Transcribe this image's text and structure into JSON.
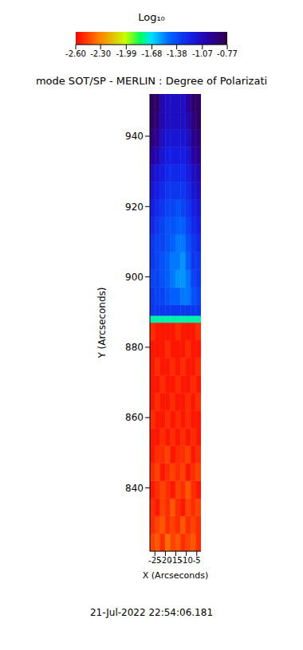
{
  "chart_data": {
    "type": "heatmap",
    "title": "mode SOT/SP - MERLIN : Degree of Polarizati",
    "x_label": "X (Arcseconds)",
    "y_label": "Y (Arcseconds)",
    "annotation": "21-Jul-2022 22:54:06.181",
    "xlim": [
      -27.4,
      -3
    ],
    "ylim": [
      822,
      952
    ],
    "xticks": [
      -25,
      -20,
      -15,
      -10,
      -5
    ],
    "yticks": [
      840,
      860,
      880,
      900,
      920,
      940
    ],
    "cells": {
      "x": [
        -27.4,
        -24.96,
        -22.52,
        -20.08,
        -17.64,
        -15.2,
        -12.76,
        -10.32,
        -7.88,
        -5.44,
        -3
      ],
      "y": [
        822,
        827,
        832,
        837,
        842,
        847,
        852,
        857,
        862,
        867,
        872,
        877,
        882,
        887,
        889,
        892,
        897,
        902,
        907,
        912,
        917,
        922,
        927,
        932,
        937,
        942,
        947,
        952
      ],
      "values": [
        [
          -2.45,
          -2.4,
          -2.5,
          -2.35,
          -2.45,
          -2.4,
          -2.5,
          -2.45,
          -2.4,
          -2.5
        ],
        [
          -2.5,
          -2.45,
          -2.4,
          -2.5,
          -2.45,
          -2.5,
          -2.4,
          -2.5,
          -2.45,
          -2.5
        ],
        [
          -2.5,
          -2.55,
          -2.45,
          -2.5,
          -2.4,
          -2.5,
          -2.55,
          -2.45,
          -2.5,
          -2.45
        ],
        [
          -2.55,
          -2.5,
          -2.45,
          -2.5,
          -2.55,
          -2.45,
          -2.5,
          -2.4,
          -2.5,
          -2.55
        ],
        [
          -2.5,
          -2.45,
          -2.55,
          -2.5,
          -2.45,
          -2.5,
          -2.45,
          -2.55,
          -2.5,
          -2.45
        ],
        [
          -2.55,
          -2.5,
          -2.5,
          -2.45,
          -2.55,
          -2.5,
          -2.5,
          -2.45,
          -2.55,
          -2.5
        ],
        [
          -2.55,
          -2.55,
          -2.5,
          -2.55,
          -2.5,
          -2.55,
          -2.5,
          -2.55,
          -2.5,
          -2.55
        ],
        [
          -2.5,
          -2.55,
          -2.55,
          -2.5,
          -2.55,
          -2.5,
          -2.55,
          -2.5,
          -2.55,
          -2.55
        ],
        [
          -2.55,
          -2.5,
          -2.55,
          -2.55,
          -2.5,
          -2.55,
          -2.55,
          -2.5,
          -2.55,
          -2.5
        ],
        [
          -2.55,
          -2.55,
          -2.5,
          -2.55,
          -2.55,
          -2.5,
          -2.55,
          -2.55,
          -2.5,
          -2.55
        ],
        [
          -2.55,
          -2.5,
          -2.55,
          -2.55,
          -2.5,
          -2.55,
          -2.5,
          -2.55,
          -2.55,
          -2.5
        ],
        [
          -2.55,
          -2.55,
          -2.55,
          -2.5,
          -2.55,
          -2.55,
          -2.55,
          -2.5,
          -2.55,
          -2.55
        ],
        [
          -2.5,
          -2.55,
          -2.55,
          -2.55,
          -2.55,
          -2.5,
          -2.55,
          -2.55,
          -2.55,
          -2.5
        ],
        [
          -1.75,
          -1.75,
          -1.75,
          -1.75,
          -1.75,
          -1.75,
          -1.75,
          -1.75,
          -1.75,
          -1.75
        ],
        [
          -1.3,
          -1.3,
          -1.3,
          -1.3,
          -1.3,
          -1.3,
          -1.3,
          -1.3,
          -1.3,
          -1.3
        ],
        [
          -1.3,
          -1.35,
          -1.35,
          -1.4,
          -1.45,
          -1.45,
          -1.5,
          -1.5,
          -1.4,
          -1.35
        ],
        [
          -1.35,
          -1.35,
          -1.4,
          -1.45,
          -1.5,
          -1.55,
          -1.55,
          -1.5,
          -1.35,
          -1.3
        ],
        [
          -1.3,
          -1.35,
          -1.4,
          -1.45,
          -1.5,
          -1.5,
          -1.55,
          -1.45,
          -1.3,
          -1.3
        ],
        [
          -1.3,
          -1.35,
          -1.35,
          -1.4,
          -1.45,
          -1.5,
          -1.5,
          -1.4,
          -1.3,
          -1.25
        ],
        [
          -1.25,
          -1.3,
          -1.35,
          -1.4,
          -1.4,
          -1.45,
          -1.45,
          -1.35,
          -1.25,
          -1.2
        ],
        [
          -1.2,
          -1.25,
          -1.3,
          -1.35,
          -1.35,
          -1.4,
          -1.35,
          -1.3,
          -1.2,
          -1.15
        ],
        [
          -1.15,
          -1.2,
          -1.25,
          -1.3,
          -1.3,
          -1.3,
          -1.3,
          -1.25,
          -1.15,
          -1.1
        ],
        [
          -1.1,
          -1.15,
          -1.2,
          -1.25,
          -1.25,
          -1.25,
          -1.25,
          -1.2,
          -1.1,
          -1.05
        ],
        [
          -1.0,
          -1.05,
          -1.15,
          -1.2,
          -1.2,
          -1.2,
          -1.2,
          -1.15,
          -1.0,
          -0.95
        ],
        [
          -0.9,
          -0.95,
          -1.1,
          -1.15,
          -1.15,
          -1.15,
          -1.15,
          -1.1,
          -0.95,
          -0.9
        ],
        [
          -0.85,
          -0.9,
          -1.05,
          -1.1,
          -1.1,
          -1.1,
          -1.1,
          -1.05,
          -0.9,
          -0.85
        ],
        [
          -0.85,
          -0.85,
          -1.05,
          -1.1,
          -1.1,
          -1.1,
          -1.1,
          -1.0,
          -0.85,
          -0.85
        ]
      ]
    },
    "colorbar": {
      "title": "Log₁₀",
      "range": [
        -2.6,
        -0.77
      ],
      "ticks": [
        {
          "value": -2.6,
          "label": "-2.60"
        },
        {
          "value": -2.3,
          "label": "-2.30"
        },
        -1.99,
        -1.68,
        -1.38,
        -1.07,
        -0.77
      ]
    }
  }
}
